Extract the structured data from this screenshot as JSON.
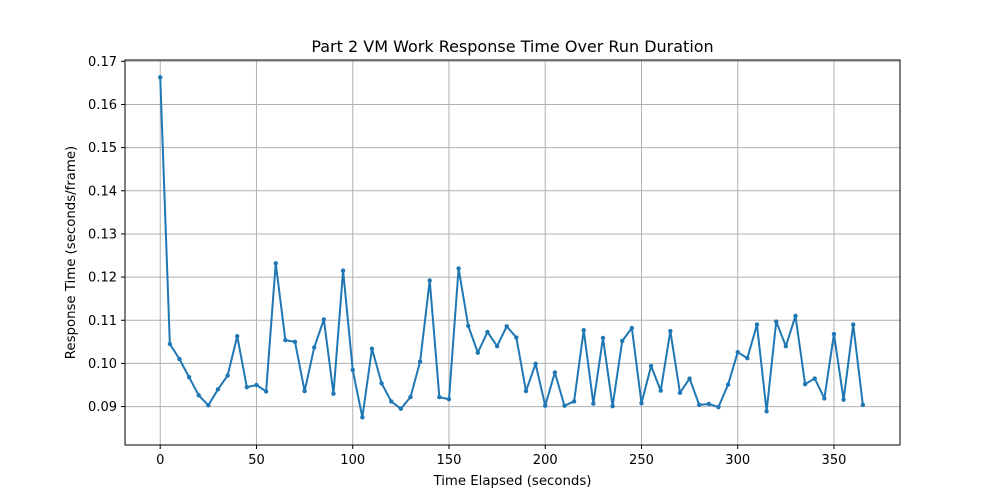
{
  "chart_data": {
    "type": "line",
    "title": "Part 2 VM Work Response Time Over Run Duration",
    "xlabel": "Time Elapsed (seconds)",
    "ylabel": "Response Time (seconds/frame)",
    "xlim": [
      -18.3,
      384.3
    ],
    "ylim": [
      0.0811,
      0.1703
    ],
    "xticks": [
      0,
      50,
      100,
      150,
      200,
      250,
      300,
      350
    ],
    "xtick_labels": [
      "0",
      "50",
      "100",
      "150",
      "200",
      "250",
      "300",
      "350"
    ],
    "yticks": [
      0.09,
      0.1,
      0.11,
      0.12,
      0.13,
      0.14,
      0.15,
      0.16,
      0.17
    ],
    "ytick_labels": [
      "0.09",
      "0.10",
      "0.11",
      "0.12",
      "0.13",
      "0.14",
      "0.15",
      "0.16",
      "0.17"
    ],
    "grid": true,
    "color": "#1f77b4",
    "series": [
      {
        "x": [
          0,
          5,
          10,
          15,
          20,
          25,
          30,
          35,
          40,
          45,
          50,
          55,
          60,
          65,
          70,
          75,
          80,
          85,
          90,
          95,
          100,
          105,
          110,
          115,
          120,
          125,
          130,
          135,
          140,
          145,
          150,
          155,
          160,
          165,
          170,
          175,
          180,
          185,
          190,
          195,
          200,
          205,
          210,
          215,
          220,
          225,
          230,
          235,
          240,
          245,
          250,
          255,
          260,
          265,
          270,
          275,
          280,
          285,
          290,
          295,
          300,
          305,
          310,
          315,
          320,
          325,
          330,
          335,
          340,
          345,
          350,
          355,
          360,
          365
        ],
        "y": [
          0.1663,
          0.1045,
          0.101,
          0.0968,
          0.0926,
          0.0903,
          0.094,
          0.0972,
          0.1063,
          0.0945,
          0.095,
          0.0935,
          0.1232,
          0.1054,
          0.105,
          0.0936,
          0.1037,
          0.1102,
          0.093,
          0.1215,
          0.0985,
          0.0875,
          0.1034,
          0.0954,
          0.0912,
          0.0895,
          0.0922,
          0.1004,
          0.1192,
          0.0922,
          0.0917,
          0.122,
          0.1087,
          0.1025,
          0.1073,
          0.104,
          0.1086,
          0.106,
          0.0936,
          0.0999,
          0.0902,
          0.0979,
          0.0902,
          0.0912,
          0.1077,
          0.0907,
          0.1059,
          0.0901,
          0.1052,
          0.1082,
          0.0908,
          0.0994,
          0.0937,
          0.1075,
          0.0932,
          0.0965,
          0.0904,
          0.0906,
          0.0899,
          0.0951,
          0.1026,
          0.1012,
          0.109,
          0.0889,
          0.1097,
          0.104,
          0.111,
          0.0952,
          0.0965,
          0.0919,
          0.1068,
          0.0916,
          0.109,
          0.0904
        ]
      }
    ]
  }
}
